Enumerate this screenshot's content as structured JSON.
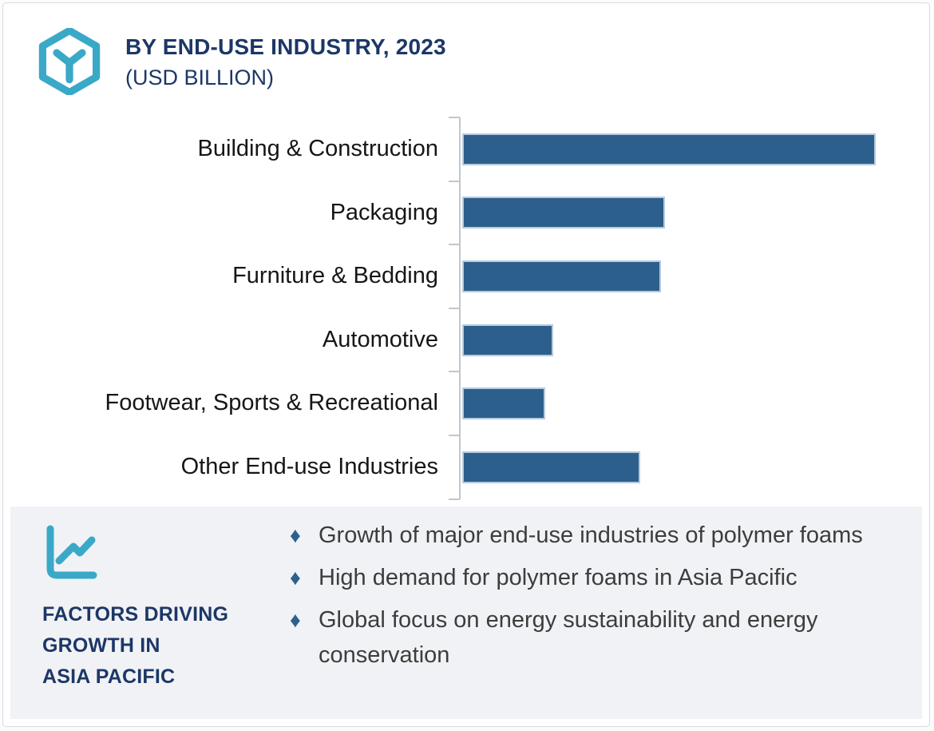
{
  "header": {
    "title": "BY END-USE INDUSTRY, 2023",
    "subtitle": "(USD BILLION)",
    "logo_icon": "hexagon-cube-icon"
  },
  "chart_data": {
    "type": "bar",
    "orientation": "horizontal",
    "title": "BY END-USE INDUSTRY, 2023",
    "units_label": "(USD BILLION)",
    "categories": [
      "Building & Construction",
      "Packaging",
      "Furniture & Bedding",
      "Automotive",
      "Footwear, Sports & Recreational",
      "Other End-use Industries"
    ],
    "values": [
      100,
      49,
      48,
      22,
      20,
      43
    ],
    "values_note": "Relative bar lengths (longest bar = 100); the numeric value axis is not labeled in the source image",
    "value_axis_labels_visible": false,
    "data_labels_visible": false,
    "gridlines": false,
    "legend": "none",
    "bar_color": "#2d5f8d",
    "bar_border_color": "#b5cadd",
    "axis_color": "#c4c6c9",
    "label_color": "#161616"
  },
  "factors": {
    "icon": "line-chart-icon",
    "heading": "FACTORS DRIVING\nGROWTH IN\nASIA PACIFIC",
    "bullet_marker": "♦",
    "bullets": [
      "Growth of major end-use industries of polymer foams",
      "High demand for polymer foams in Asia Pacific",
      "Global focus on energy sustainability and energy conservation"
    ]
  },
  "colors": {
    "accent_teal": "#3aa9c7",
    "navy": "#1c3767",
    "bar_blue": "#2d5f8d",
    "panel_bg": "#f1f2f5",
    "card_border": "#d8dbe0"
  }
}
